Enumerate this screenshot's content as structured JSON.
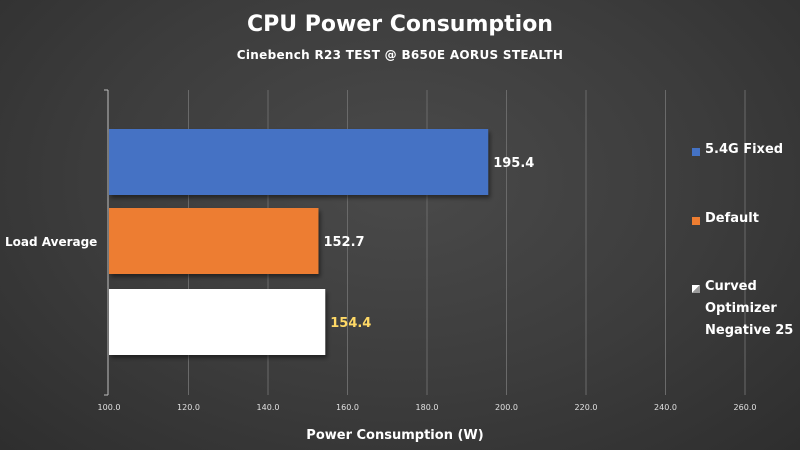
{
  "chart_data": {
    "type": "bar",
    "orientation": "horizontal",
    "title": "CPU Power Consumption",
    "subtitle": "Cinebench R23 TEST @ B650E AORUS STEALTH",
    "xlabel": "Power Consumption (W)",
    "ylabel": "",
    "categories": [
      "Load Average"
    ],
    "xlim": [
      100,
      260
    ],
    "xticks": [
      "100.0",
      "120.0",
      "140.0",
      "160.0",
      "180.0",
      "200.0",
      "220.0",
      "240.0",
      "260.0"
    ],
    "grid": "vertical",
    "legend_position": "right",
    "series": [
      {
        "name": "5.4G Fixed",
        "values": [
          195.4
        ],
        "label": "195.4",
        "color": "#4472c4",
        "label_color": "#ffffff"
      },
      {
        "name": "Default",
        "values": [
          152.7
        ],
        "label": "152.7",
        "color": "#ed7d31",
        "label_color": "#ffffff"
      },
      {
        "name": "Curved Optimizer Negative 25",
        "values": [
          154.4
        ],
        "label": "154.4",
        "color": "#ffffff",
        "label_color": "#ffd966"
      }
    ]
  },
  "legend": {
    "items": [
      {
        "label": "5.4G Fixed"
      },
      {
        "label": "Default"
      },
      {
        "label": "Curved Optimizer Negative 25"
      }
    ]
  }
}
